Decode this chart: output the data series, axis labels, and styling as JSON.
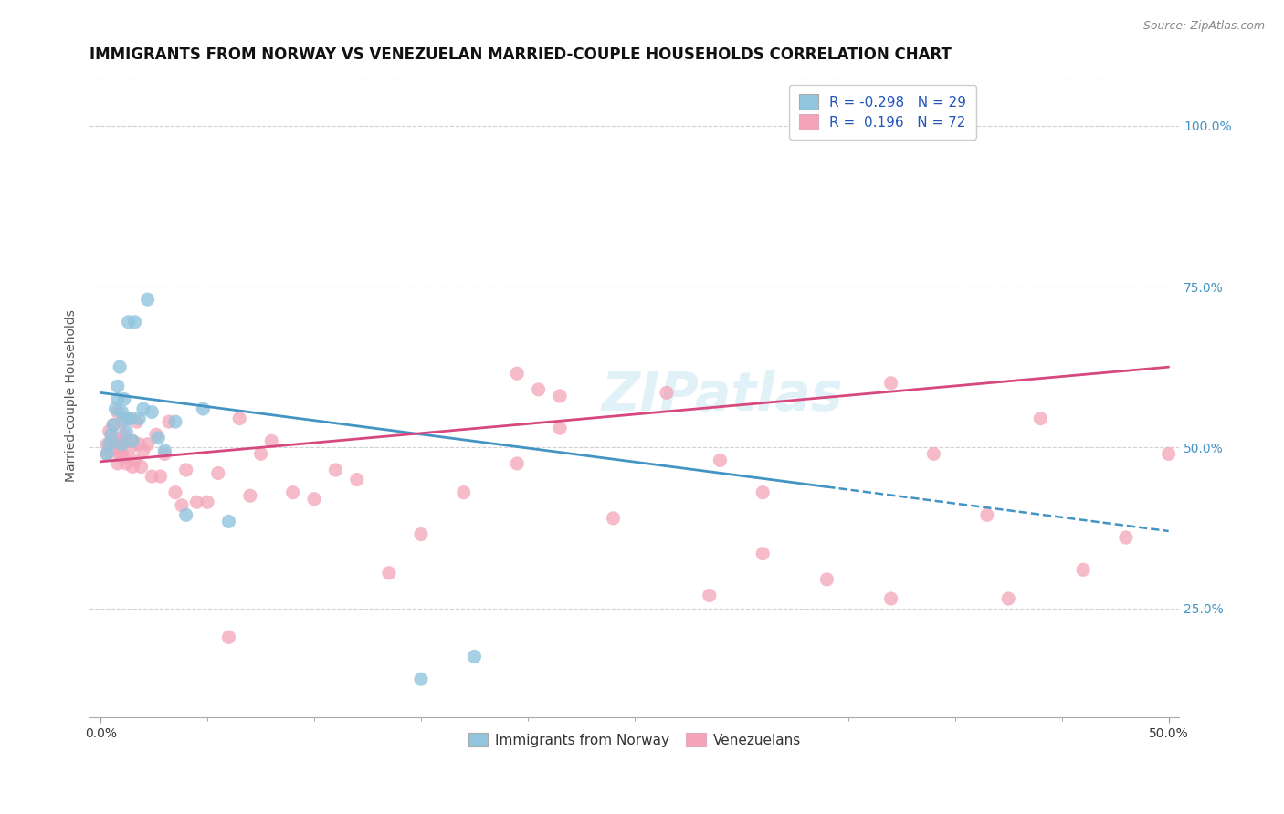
{
  "title": "IMMIGRANTS FROM NORWAY VS VENEZUELAN MARRIED-COUPLE HOUSEHOLDS CORRELATION CHART",
  "source_text": "Source: ZipAtlas.com",
  "xlabel_blue": "Immigrants from Norway",
  "xlabel_pink": "Venezuelans",
  "ylabel": "Married-couple Households",
  "xlim": [
    -0.005,
    0.505
  ],
  "ylim": [
    0.08,
    1.08
  ],
  "xticks_minor": [
    0.0,
    0.05,
    0.1,
    0.15,
    0.2,
    0.25,
    0.3,
    0.35,
    0.4,
    0.45,
    0.5
  ],
  "xticks_label": [
    0.0,
    0.5
  ],
  "xticklabels": [
    "0.0%",
    "50.0%"
  ],
  "yticks": [
    0.25,
    0.5,
    0.75,
    1.0
  ],
  "yticklabels_left": [
    "",
    "",
    "",
    ""
  ],
  "yticklabels_right": [
    "25.0%",
    "50.0%",
    "75.0%",
    "100.0%"
  ],
  "blue_R": -0.298,
  "blue_N": 29,
  "pink_R": 0.196,
  "pink_N": 72,
  "blue_color": "#92c5de",
  "pink_color": "#f4a4b8",
  "blue_line_color": "#4393c3",
  "pink_line_color": "#d6487e",
  "trend_blue_x0": 0.0,
  "trend_blue_y0": 0.585,
  "trend_blue_x1": 0.5,
  "trend_blue_y1": 0.37,
  "trend_blue_solid_end": 0.34,
  "trend_pink_x0": 0.0,
  "trend_pink_y0": 0.478,
  "trend_pink_x1": 0.5,
  "trend_pink_y1": 0.625,
  "blue_dots_x": [
    0.003,
    0.004,
    0.005,
    0.006,
    0.007,
    0.008,
    0.008,
    0.009,
    0.01,
    0.01,
    0.011,
    0.011,
    0.012,
    0.013,
    0.014,
    0.015,
    0.016,
    0.018,
    0.02,
    0.022,
    0.024,
    0.027,
    0.03,
    0.035,
    0.04,
    0.048,
    0.06,
    0.15,
    0.175
  ],
  "blue_dots_y": [
    0.49,
    0.505,
    0.52,
    0.535,
    0.56,
    0.575,
    0.595,
    0.625,
    0.555,
    0.505,
    0.575,
    0.545,
    0.525,
    0.695,
    0.545,
    0.51,
    0.695,
    0.545,
    0.56,
    0.73,
    0.555,
    0.515,
    0.495,
    0.54,
    0.395,
    0.56,
    0.385,
    0.14,
    0.175
  ],
  "pink_dots_x": [
    0.003,
    0.003,
    0.004,
    0.005,
    0.005,
    0.006,
    0.007,
    0.007,
    0.008,
    0.008,
    0.009,
    0.009,
    0.01,
    0.01,
    0.011,
    0.011,
    0.012,
    0.012,
    0.013,
    0.014,
    0.015,
    0.015,
    0.016,
    0.017,
    0.018,
    0.019,
    0.02,
    0.022,
    0.024,
    0.026,
    0.028,
    0.03,
    0.032,
    0.035,
    0.038,
    0.04,
    0.045,
    0.05,
    0.055,
    0.06,
    0.065,
    0.07,
    0.075,
    0.08,
    0.09,
    0.1,
    0.11,
    0.12,
    0.135,
    0.15,
    0.17,
    0.195,
    0.215,
    0.24,
    0.265,
    0.29,
    0.31,
    0.34,
    0.37,
    0.39,
    0.415,
    0.44,
    0.46,
    0.48,
    0.5,
    0.195,
    0.205,
    0.215,
    0.285,
    0.31,
    0.37,
    0.425
  ],
  "pink_dots_y": [
    0.505,
    0.49,
    0.525,
    0.51,
    0.495,
    0.535,
    0.515,
    0.5,
    0.475,
    0.555,
    0.505,
    0.49,
    0.49,
    0.54,
    0.52,
    0.485,
    0.51,
    0.475,
    0.545,
    0.5,
    0.47,
    0.51,
    0.48,
    0.54,
    0.505,
    0.47,
    0.495,
    0.505,
    0.455,
    0.52,
    0.455,
    0.49,
    0.54,
    0.43,
    0.41,
    0.465,
    0.415,
    0.415,
    0.46,
    0.205,
    0.545,
    0.425,
    0.49,
    0.51,
    0.43,
    0.42,
    0.465,
    0.45,
    0.305,
    0.365,
    0.43,
    0.475,
    0.53,
    0.39,
    0.585,
    0.48,
    0.335,
    0.295,
    0.6,
    0.49,
    0.395,
    0.545,
    0.31,
    0.36,
    0.49,
    0.615,
    0.59,
    0.58,
    0.27,
    0.43,
    0.265,
    0.265
  ],
  "watermark_text": "ZIPatlas",
  "background_color": "#ffffff",
  "grid_color": "#d0d0d0",
  "right_ytick_color": "#4393c3",
  "title_fontsize": 12,
  "axis_label_fontsize": 10,
  "tick_fontsize": 10,
  "legend_fontsize": 11
}
